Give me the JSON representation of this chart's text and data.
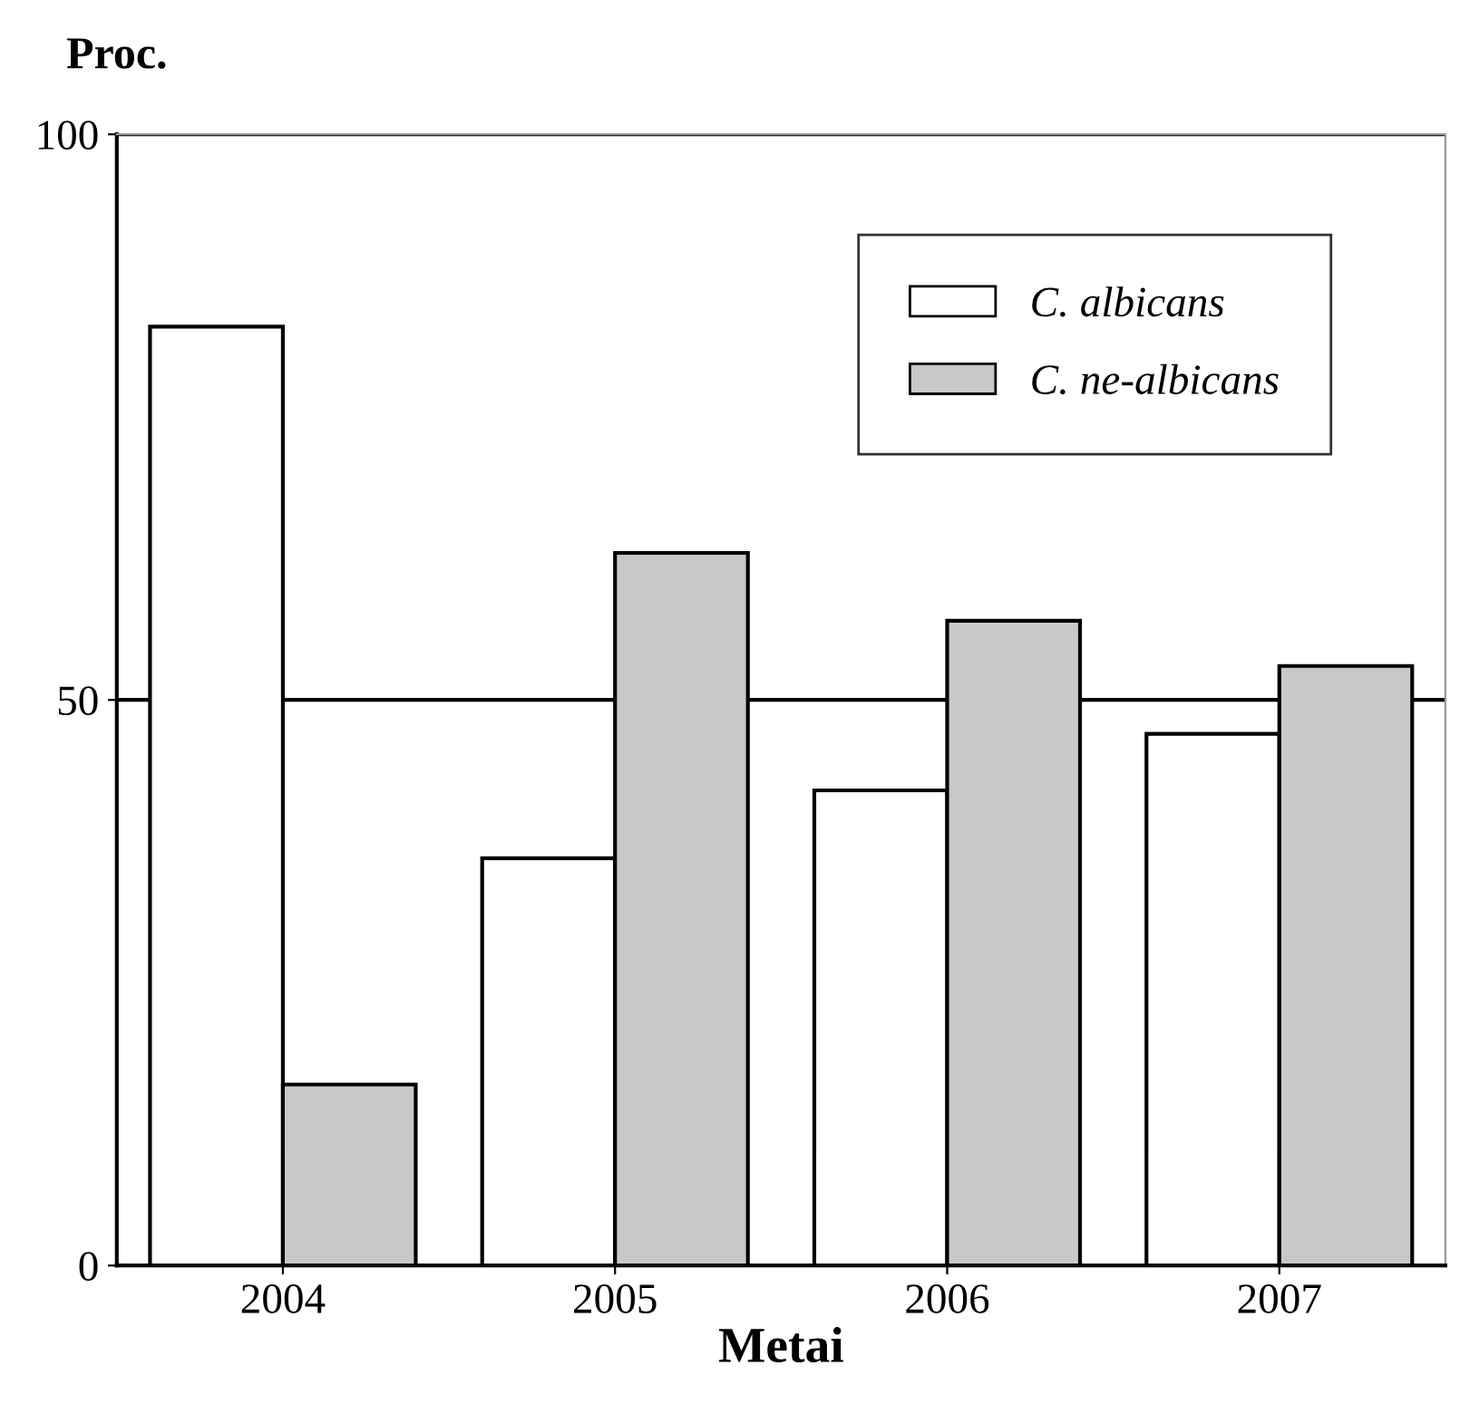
{
  "chart_data": {
    "type": "bar",
    "ylabel": "Proc.",
    "xlabel": "Metai",
    "categories": [
      "2004",
      "2005",
      "2006",
      "2007"
    ],
    "series": [
      {
        "name": "C. albicans",
        "color": "#ffffff",
        "values": [
          83,
          36,
          42,
          47
        ]
      },
      {
        "name": "C. ne-albicans",
        "color": "#c8c8c8",
        "values": [
          16,
          63,
          57,
          53
        ]
      }
    ],
    "ylim": [
      0,
      100
    ],
    "yticks": [
      0,
      50,
      100
    ],
    "grid": "y",
    "legend": "top right"
  }
}
